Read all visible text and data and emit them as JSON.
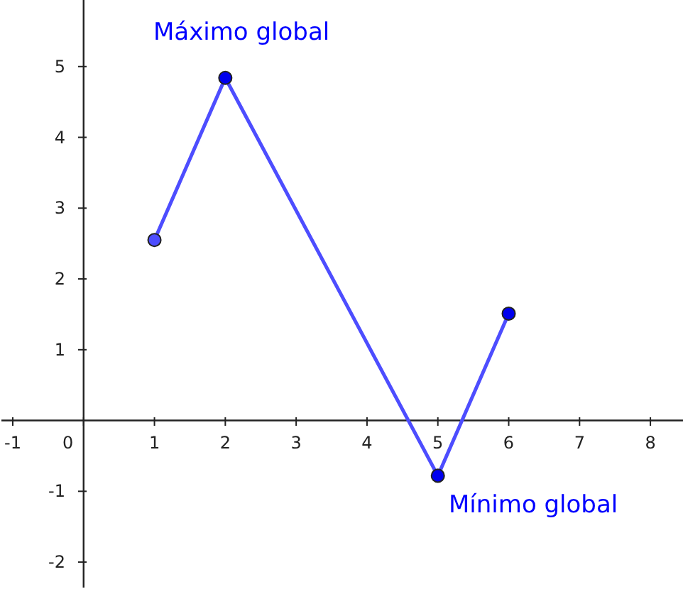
{
  "chart_data": {
    "type": "line",
    "x": [
      1,
      2,
      5,
      6
    ],
    "series": [
      {
        "color": "#4d4dff",
        "colors": [
          "#4d4dff",
          "#0000ee",
          "#0000ee",
          "#0000ee"
        ],
        "values": [
          2.55,
          4.84,
          -0.78,
          1.51
        ]
      }
    ],
    "xlim": [
      -1.16,
      8.46
    ],
    "ylim": [
      -2.36,
      5.94
    ],
    "xticks": [
      -1,
      0,
      1,
      2,
      3,
      4,
      5,
      6,
      7,
      8
    ],
    "yticks": [
      -2,
      -1,
      1,
      2,
      3,
      4,
      5
    ],
    "marker": "circle",
    "line_style": "solid",
    "annotations": [
      {
        "text": "Máximo global",
        "x": 2,
        "y": 4.84
      },
      {
        "text": "Mínimo global",
        "x": 5,
        "y": -0.78
      }
    ]
  }
}
